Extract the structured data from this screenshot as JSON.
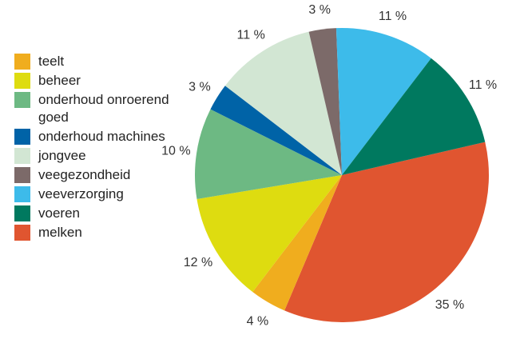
{
  "chart_data": {
    "type": "pie",
    "title": "",
    "slices": [
      {
        "label": "melken",
        "value": 35,
        "display": "35 %",
        "color": "#E05530"
      },
      {
        "label": "teelt",
        "value": 4,
        "display": "4 %",
        "color": "#F0AD1E"
      },
      {
        "label": "beheer",
        "value": 12,
        "display": "12 %",
        "color": "#DEDC10"
      },
      {
        "label": "onderhoud onroerend goed",
        "value": 10,
        "display": "10 %",
        "color": "#6DB983"
      },
      {
        "label": "onderhoud machines",
        "value": 3,
        "display": "3 %",
        "color": "#0063A7"
      },
      {
        "label": "jongvee",
        "value": 11,
        "display": "11 %",
        "color": "#D2E6D3"
      },
      {
        "label": "veegezondheid",
        "value": 3,
        "display": "3 %",
        "color": "#7C6A69"
      },
      {
        "label": "veeverzorging",
        "value": 11,
        "display": "11 %",
        "color": "#3DBBEA"
      },
      {
        "label": "voeren",
        "value": 11,
        "display": "11 %",
        "color": "#00795F"
      }
    ],
    "legend_order": [
      "teelt",
      "beheer",
      "onderhoud onroerend goed",
      "onderhoud machines",
      "jongvee",
      "veegezondheid",
      "veeverzorging",
      "voeren",
      "melken"
    ],
    "legend_placement": "left"
  }
}
